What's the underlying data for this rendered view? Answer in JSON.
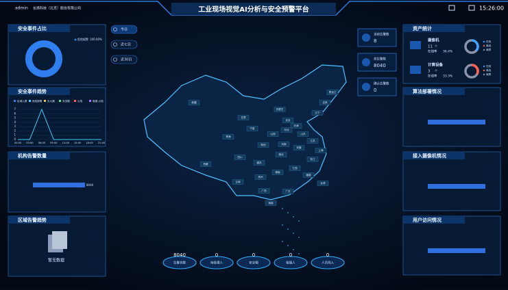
{
  "header": {
    "user": "admin",
    "company": "长扬科技（北京）股份有限公司",
    "title": "工业现场视觉AI分析与安全预警平台",
    "time": "15:26:00"
  },
  "tabs": [
    "今日",
    "近七日",
    "近30日"
  ],
  "event_ratio": {
    "title": "安全事件占比",
    "legend": [
      {
        "name": "危险报警",
        "value": 100,
        "value_label": "100.00%",
        "color": "#2f7ff0"
      }
    ]
  },
  "event_trend": {
    "title": "安全事件趋势",
    "legend": [
      {
        "name": "区域入侵",
        "color": "#2f7ff0"
      },
      {
        "name": "危险报警",
        "color": "#3fd0ff"
      },
      {
        "name": "灭火器",
        "color": "#f0c040"
      },
      {
        "name": "安全帽",
        "color": "#40e0a0"
      },
      {
        "name": "火焰",
        "color": "#ff6060"
      },
      {
        "name": "吸烟-火焰",
        "color": "#b070ff"
      }
    ],
    "ylim": [
      0,
      7
    ],
    "yticks": [
      0,
      1,
      2,
      3,
      4,
      5,
      6,
      7
    ],
    "categories": [
      "00:00",
      "03:00",
      "06:00",
      "09:00",
      "12:00",
      "15:00",
      "18:00",
      "21:00"
    ],
    "values": [
      0,
      0,
      7,
      0,
      0,
      0,
      0,
      0
    ],
    "color": "#3fd0ff"
  },
  "org_alarms": {
    "title": "机构告警数量",
    "value": 8040
  },
  "area_trend": {
    "title": "区域告警趋势",
    "empty": "暂无数据"
  },
  "stats": [
    {
      "label": "当前告警数",
      "value": 8
    },
    {
      "label": "总告警数",
      "value": 8040
    },
    {
      "label": "确认告警数",
      "value": 0
    }
  ],
  "assets": {
    "title": "资产统计",
    "items": [
      {
        "name": "摄像机",
        "count": 11,
        "unit": "个",
        "rate_label": "在线率",
        "rate": 36.4,
        "rate_text": "36.4%",
        "color": "#3fa0ff"
      },
      {
        "name": "计算设备",
        "count": 3,
        "unit": "个",
        "rate_label": "在线率",
        "rate": 33.3,
        "rate_text": "33.3%",
        "color": "#ff6050"
      }
    ],
    "legend": [
      "在线",
      "离线",
      "故障"
    ]
  },
  "panels_right": [
    "算法部署情况",
    "接入摄像机情况",
    "用户访问情况"
  ],
  "map_labels": [
    "新疆",
    "西藏",
    "青海",
    "甘肃",
    "内蒙古",
    "黑龙江",
    "吉林",
    "辽宁",
    "北京",
    "天津",
    "河北",
    "山西",
    "山东",
    "河南",
    "陕西",
    "宁夏",
    "四川",
    "重庆",
    "湖北",
    "安徽",
    "江苏",
    "上海",
    "浙江",
    "江西",
    "湖南",
    "贵州",
    "云南",
    "广西",
    "广东",
    "福建",
    "台湾",
    "海南"
  ],
  "bottom": [
    {
      "value": 8040,
      "label": "告警总数"
    },
    {
      "value": 0,
      "label": "待处理人"
    },
    {
      "value": 0,
      "label": "安全帽"
    },
    {
      "value": 0,
      "label": "吸烟人"
    },
    {
      "value": 0,
      "label": "人员闯入"
    }
  ]
}
